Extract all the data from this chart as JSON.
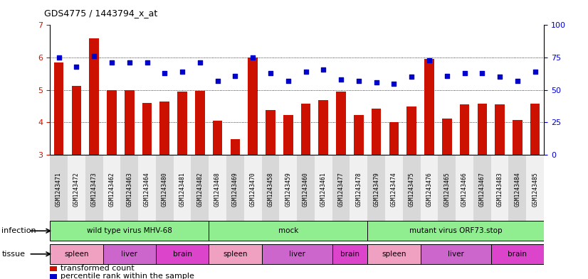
{
  "title": "GDS4775 / 1443794_x_at",
  "samples": [
    "GSM1243471",
    "GSM1243472",
    "GSM1243473",
    "GSM1243462",
    "GSM1243463",
    "GSM1243464",
    "GSM1243480",
    "GSM1243481",
    "GSM1243482",
    "GSM1243468",
    "GSM1243469",
    "GSM1243470",
    "GSM1243458",
    "GSM1243459",
    "GSM1243460",
    "GSM1243461",
    "GSM1243477",
    "GSM1243478",
    "GSM1243479",
    "GSM1243474",
    "GSM1243475",
    "GSM1243476",
    "GSM1243465",
    "GSM1243466",
    "GSM1243467",
    "GSM1243483",
    "GSM1243484",
    "GSM1243485"
  ],
  "bar_values": [
    5.85,
    5.12,
    6.6,
    5.0,
    5.0,
    4.6,
    4.65,
    4.95,
    4.98,
    4.05,
    3.48,
    6.0,
    4.38,
    4.22,
    4.58,
    4.68,
    4.95,
    4.22,
    4.42,
    4.0,
    4.48,
    5.95,
    4.12,
    4.55,
    4.58,
    4.55,
    4.08,
    4.58
  ],
  "dot_values_pct": [
    75,
    68,
    76,
    71,
    71,
    71,
    63,
    64,
    71,
    57,
    61,
    75,
    63,
    57,
    64,
    66,
    58,
    57,
    56,
    55,
    60,
    73,
    61,
    63,
    63,
    60,
    57,
    64
  ],
  "ylim_left": [
    3,
    7
  ],
  "ylim_right": [
    0,
    100
  ],
  "yticks_left": [
    3,
    4,
    5,
    6,
    7
  ],
  "yticks_right": [
    0,
    25,
    50,
    75,
    100
  ],
  "bar_color": "#cc1100",
  "dot_color": "#0000cc",
  "infection_groups": [
    {
      "label": "wild type virus MHV-68",
      "start": 0,
      "end": 9
    },
    {
      "label": "mock",
      "start": 9,
      "end": 18
    },
    {
      "label": "mutant virus ORF73.stop",
      "start": 18,
      "end": 28
    }
  ],
  "tissue_groups": [
    {
      "label": "spleen",
      "start": 0,
      "end": 3,
      "color": "#f0a0c0"
    },
    {
      "label": "liver",
      "start": 3,
      "end": 6,
      "color": "#cc66cc"
    },
    {
      "label": "brain",
      "start": 6,
      "end": 9,
      "color": "#dd44cc"
    },
    {
      "label": "spleen",
      "start": 9,
      "end": 12,
      "color": "#f0a0c0"
    },
    {
      "label": "liver",
      "start": 12,
      "end": 16,
      "color": "#cc66cc"
    },
    {
      "label": "brain",
      "start": 16,
      "end": 18,
      "color": "#dd44cc"
    },
    {
      "label": "spleen",
      "start": 18,
      "end": 21,
      "color": "#f0a0c0"
    },
    {
      "label": "liver",
      "start": 21,
      "end": 25,
      "color": "#cc66cc"
    },
    {
      "label": "brain",
      "start": 25,
      "end": 28,
      "color": "#dd44cc"
    }
  ],
  "infection_color": "#90ee90",
  "infection_label": "infection",
  "tissue_label": "tissue",
  "legend_items": [
    {
      "label": "transformed count",
      "color": "#cc1100"
    },
    {
      "label": "percentile rank within the sample",
      "color": "#0000cc"
    }
  ],
  "xtick_bg_colors": [
    "#d8d8d8",
    "#f0f0f0"
  ]
}
